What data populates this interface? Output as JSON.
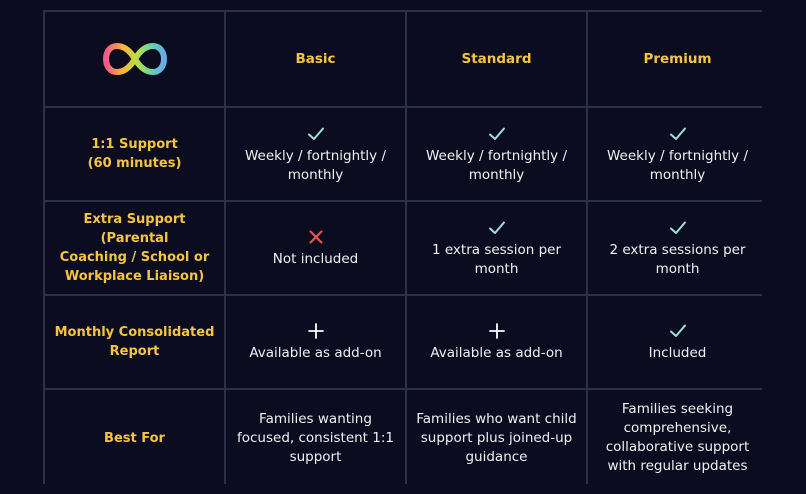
{
  "columns": [
    "Basic",
    "Standard",
    "Premium"
  ],
  "colors": {
    "accent": "#f5c542",
    "check": "#9fe3d8",
    "cross": "#f0504f"
  },
  "rows": [
    {
      "label": "1:1 Support\n(60 minutes)",
      "cells": [
        {
          "icon": "check-icon",
          "text": "Weekly / fortnightly /\nmonthly"
        },
        {
          "icon": "check-icon",
          "text": "Weekly / fortnightly /\nmonthly"
        },
        {
          "icon": "check-icon",
          "text": "Weekly / fortnightly /\nmonthly"
        }
      ]
    },
    {
      "label": "Extra Support (Parental\nCoaching / School or\nWorkplace Liaison)",
      "cells": [
        {
          "icon": "cross-icon",
          "text": "Not included"
        },
        {
          "icon": "check-icon",
          "text": "1 extra session per\nmonth"
        },
        {
          "icon": "check-icon",
          "text": "2 extra sessions per\nmonth"
        }
      ]
    },
    {
      "label": "Monthly Consolidated\nReport",
      "cells": [
        {
          "icon": "plus-icon",
          "text": "Available as add-on"
        },
        {
          "icon": "plus-icon",
          "text": "Available as add-on"
        },
        {
          "icon": "check-icon",
          "text": "Included"
        }
      ]
    },
    {
      "label": "Best For",
      "cells": [
        {
          "icon": "",
          "text": "Families wanting\nfocused, consistent 1:1\nsupport"
        },
        {
          "icon": "",
          "text": "Families who want child\nsupport plus joined-up\nguidance"
        },
        {
          "icon": "",
          "text": "Families seeking\ncomprehensive,\ncollaborative support\nwith regular updates"
        }
      ]
    }
  ]
}
